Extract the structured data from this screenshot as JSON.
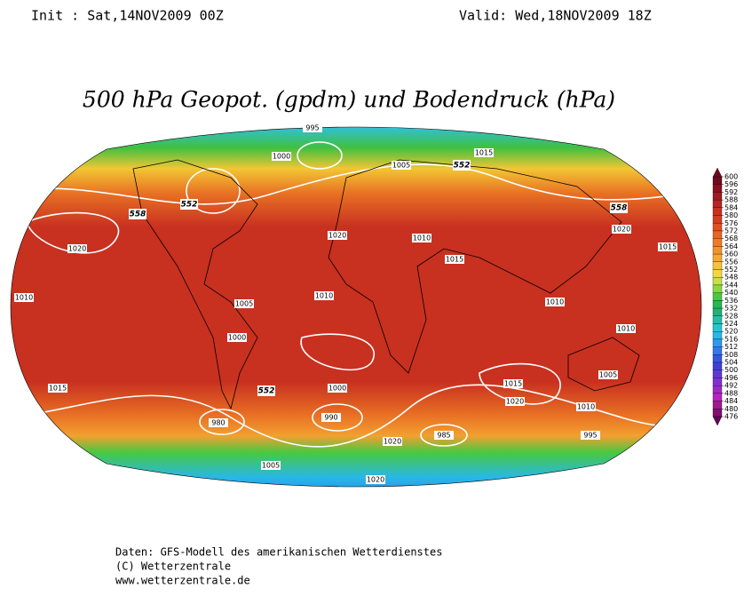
{
  "header": {
    "init": "Init : Sat,14NOV2009 00Z",
    "valid": "Valid: Wed,18NOV2009 18Z"
  },
  "title": "500 hPa Geopot. (gpdm) und Bodendruck (hPa)",
  "colorbar": {
    "ticks": [
      600,
      596,
      592,
      588,
      584,
      580,
      576,
      572,
      568,
      564,
      560,
      556,
      552,
      548,
      544,
      540,
      536,
      532,
      528,
      524,
      520,
      516,
      512,
      508,
      504,
      500,
      496,
      492,
      488,
      484,
      480,
      476
    ],
    "colors": [
      "#6e0a1e",
      "#8a1020",
      "#a01a22",
      "#b82424",
      "#c83020",
      "#d43c1c",
      "#e05020",
      "#e86424",
      "#ee7a28",
      "#f2922c",
      "#f4aa30",
      "#f6c234",
      "#f2d83a",
      "#c8e040",
      "#88d840",
      "#48c840",
      "#28b850",
      "#20b078",
      "#20c0a8",
      "#20c8d0",
      "#28b8e8",
      "#3098f0",
      "#3478ec",
      "#3458e0",
      "#4040d8",
      "#6038d8",
      "#8030d0",
      "#a028c8",
      "#b820c0",
      "#a01890",
      "#801070",
      "#600858"
    ]
  },
  "map": {
    "isobar_labels": [
      "1010",
      "1015",
      "1020",
      "1005",
      "1000",
      "1010",
      "1020",
      "1010",
      "1015",
      "1010",
      "1015",
      "1020",
      "1005",
      "1010",
      "1015",
      "1020",
      "995",
      "1000",
      "1005",
      "1015",
      "980",
      "990",
      "1000",
      "985",
      "1020",
      "1005",
      "1020",
      "1010",
      "995"
    ],
    "height_labels": [
      "558",
      "552",
      "552",
      "558",
      "552"
    ]
  },
  "footer": {
    "lines": [
      "Daten: GFS-Modell des amerikanischen Wetterdienstes",
      "(C) Wetterzentrale",
      "www.wetterzentrale.de"
    ]
  }
}
